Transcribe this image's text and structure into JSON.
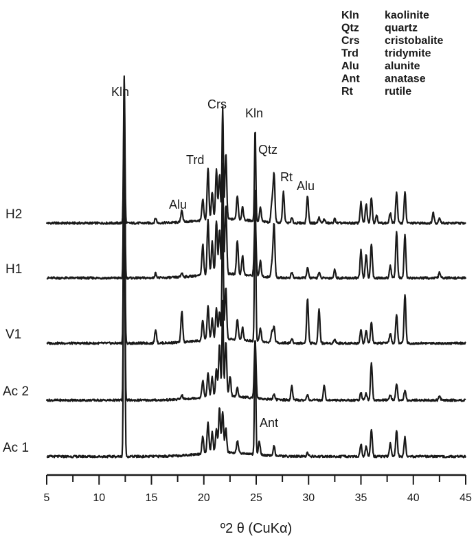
{
  "chart_data": {
    "type": "line",
    "xlabel": "º2 θ (CuKα)",
    "xlim": [
      5,
      45
    ],
    "xticks": [
      5,
      10,
      15,
      20,
      25,
      30,
      35,
      40,
      45
    ],
    "legend": [
      {
        "abbr": "Kln",
        "name": "kaolinite"
      },
      {
        "abbr": "Qtz",
        "name": "quartz"
      },
      {
        "abbr": "Crs",
        "name": "cristobalite"
      },
      {
        "abbr": "Trd",
        "name": "tridymite"
      },
      {
        "abbr": "Alu",
        "name": "alunite"
      },
      {
        "abbr": "Ant",
        "name": "anatase"
      },
      {
        "abbr": "Rt",
        "name": "rutile"
      }
    ],
    "legend_position": "top-right",
    "series": [
      {
        "name": "H2",
        "peaks": [
          [
            12.4,
            215
          ],
          [
            15.4,
            7
          ],
          [
            17.9,
            18
          ],
          [
            19.9,
            30
          ],
          [
            20.4,
            75
          ],
          [
            20.8,
            40
          ],
          [
            21.2,
            72
          ],
          [
            21.5,
            65
          ],
          [
            21.8,
            165
          ],
          [
            22.1,
            95
          ],
          [
            23.2,
            35
          ],
          [
            23.7,
            18
          ],
          [
            24.9,
            135
          ],
          [
            25.4,
            20
          ],
          [
            26.5,
            30
          ],
          [
            26.7,
            72
          ],
          [
            27.6,
            45
          ],
          [
            28.4,
            7
          ],
          [
            29.9,
            40
          ],
          [
            31.0,
            8
          ],
          [
            31.5,
            6
          ],
          [
            32.5,
            6
          ],
          [
            35.0,
            30
          ],
          [
            35.5,
            28
          ],
          [
            36.0,
            38
          ],
          [
            36.5,
            12
          ],
          [
            37.8,
            15
          ],
          [
            38.4,
            45
          ],
          [
            39.2,
            45
          ],
          [
            41.9,
            15
          ],
          [
            42.5,
            8
          ]
        ]
      },
      {
        "name": "H1",
        "peaks": [
          [
            12.4,
            290
          ],
          [
            15.4,
            7
          ],
          [
            17.9,
            6
          ],
          [
            19.9,
            45
          ],
          [
            20.4,
            80
          ],
          [
            20.8,
            48
          ],
          [
            21.2,
            78
          ],
          [
            21.5,
            65
          ],
          [
            21.8,
            160
          ],
          [
            22.1,
            100
          ],
          [
            23.2,
            50
          ],
          [
            23.7,
            28
          ],
          [
            24.9,
            90
          ],
          [
            25.4,
            22
          ],
          [
            26.5,
            20
          ],
          [
            26.7,
            78
          ],
          [
            28.4,
            8
          ],
          [
            29.9,
            15
          ],
          [
            31.0,
            8
          ],
          [
            32.5,
            12
          ],
          [
            35.0,
            40
          ],
          [
            35.5,
            35
          ],
          [
            36.0,
            50
          ],
          [
            37.8,
            18
          ],
          [
            38.4,
            68
          ],
          [
            39.2,
            62
          ],
          [
            42.5,
            8
          ]
        ]
      },
      {
        "name": "V1",
        "peaks": [
          [
            12.4,
            365
          ],
          [
            15.4,
            20
          ],
          [
            17.9,
            45
          ],
          [
            19.9,
            30
          ],
          [
            20.4,
            50
          ],
          [
            20.8,
            30
          ],
          [
            21.2,
            45
          ],
          [
            21.5,
            40
          ],
          [
            21.8,
            200
          ],
          [
            22.1,
            75
          ],
          [
            23.2,
            30
          ],
          [
            23.7,
            18
          ],
          [
            24.9,
            230
          ],
          [
            25.4,
            20
          ],
          [
            26.5,
            15
          ],
          [
            26.7,
            22
          ],
          [
            28.4,
            6
          ],
          [
            29.9,
            65
          ],
          [
            31.0,
            50
          ],
          [
            32.5,
            6
          ],
          [
            35.0,
            20
          ],
          [
            35.5,
            18
          ],
          [
            36.0,
            30
          ],
          [
            37.8,
            15
          ],
          [
            38.4,
            42
          ],
          [
            39.2,
            72
          ]
        ]
      },
      {
        "name": "Ac 2",
        "peaks": [
          [
            12.4,
            410
          ],
          [
            17.9,
            6
          ],
          [
            19.9,
            25
          ],
          [
            20.4,
            35
          ],
          [
            20.8,
            28
          ],
          [
            21.2,
            40
          ],
          [
            21.5,
            75
          ],
          [
            21.8,
            140
          ],
          [
            22.1,
            80
          ],
          [
            22.5,
            30
          ],
          [
            23.2,
            12
          ],
          [
            24.9,
            85
          ],
          [
            26.7,
            8
          ],
          [
            28.4,
            20
          ],
          [
            29.9,
            8
          ],
          [
            31.5,
            22
          ],
          [
            35.0,
            12
          ],
          [
            35.5,
            10
          ],
          [
            36.0,
            55
          ],
          [
            37.8,
            8
          ],
          [
            38.4,
            25
          ],
          [
            39.2,
            14
          ],
          [
            42.5,
            6
          ]
        ]
      },
      {
        "name": "Ac 1",
        "peaks": [
          [
            12.4,
            470
          ],
          [
            19.9,
            25
          ],
          [
            20.4,
            45
          ],
          [
            20.8,
            30
          ],
          [
            21.2,
            35
          ],
          [
            21.5,
            65
          ],
          [
            21.8,
            60
          ],
          [
            22.1,
            35
          ],
          [
            23.2,
            18
          ],
          [
            24.9,
            175
          ],
          [
            25.3,
            20
          ],
          [
            26.7,
            15
          ],
          [
            29.9,
            6
          ],
          [
            35.0,
            18
          ],
          [
            35.5,
            15
          ],
          [
            36.0,
            40
          ],
          [
            37.8,
            20
          ],
          [
            38.4,
            38
          ],
          [
            39.2,
            28
          ]
        ]
      }
    ],
    "peak_labels": [
      {
        "text": "Kln",
        "x": 12.4
      },
      {
        "text": "Crs",
        "x": 21.8
      },
      {
        "text": "Kln",
        "x": 24.9
      },
      {
        "text": "Trd",
        "x": 20.4
      },
      {
        "text": "Qtz",
        "x": 26.7
      },
      {
        "text": "Rt",
        "x": 27.6
      },
      {
        "text": "Alu",
        "x": 29.9
      },
      {
        "text": "Alu",
        "x": 17.9
      },
      {
        "text": "Ant",
        "x": 25.3
      }
    ]
  }
}
